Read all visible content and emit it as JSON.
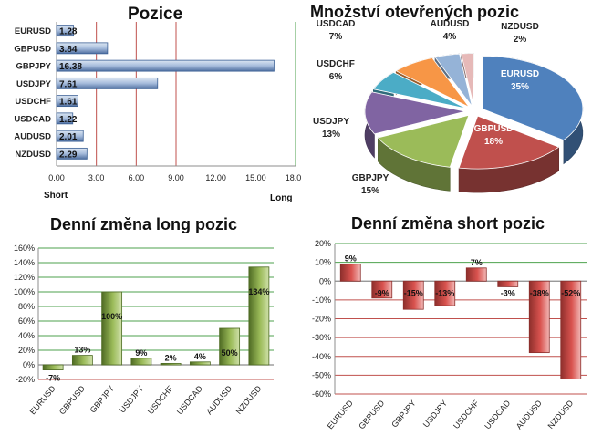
{
  "chart_data": [
    {
      "type": "bar",
      "orientation": "horizontal",
      "title": "Pozice",
      "categories": [
        "EURUSD",
        "GBPUSD",
        "GBPJPY",
        "USDJPY",
        "USDCHF",
        "USDCAD",
        "AUDUSD",
        "NZDUSD"
      ],
      "values": [
        1.28,
        3.84,
        16.38,
        7.61,
        1.61,
        1.22,
        2.01,
        2.29
      ],
      "value_labels": [
        "1.28",
        "3.84",
        "16.38",
        "7.61",
        "1.61",
        "1.22",
        "2.01",
        "2.29"
      ],
      "xlim": [
        0,
        18
      ],
      "xticks": [
        "0.00",
        "3.00",
        "6.00",
        "9.00",
        "12.00",
        "15.00",
        "18.00"
      ],
      "x_left_label": "Short",
      "x_right_label": "Long",
      "reference_lines": [
        3,
        6,
        9,
        18
      ],
      "colors": {
        "bar": "#5a82b8",
        "line_red": "#c0504d",
        "line_green": "#4ea24e"
      }
    },
    {
      "type": "pie",
      "title": "Množství otevřených pozic",
      "slices": [
        {
          "name": "EURUSD",
          "pct": 35,
          "label": "EURUSD\n35%",
          "color": "#4f81bd"
        },
        {
          "name": "GBPUSD",
          "pct": 18,
          "label": "GBPUSD\n18%",
          "color": "#c0504d"
        },
        {
          "name": "GBPJPY",
          "pct": 15,
          "label": "GBPJPY\n15%",
          "color": "#9bbb59"
        },
        {
          "name": "USDJPY",
          "pct": 13,
          "label": "USDJPY\n13%",
          "color": "#8064a2"
        },
        {
          "name": "USDCHF",
          "pct": 6,
          "label": "USDCHF\n6%",
          "color": "#4bacc6"
        },
        {
          "name": "USDCAD",
          "pct": 7,
          "label": "USDCAD\n7%",
          "color": "#f79646"
        },
        {
          "name": "AUDUSD",
          "pct": 4,
          "label": "AUDUSD\n4%",
          "color": "#95b3d7"
        },
        {
          "name": "NZDUSD",
          "pct": 2,
          "label": "NZDUSD\n2%",
          "color": "#e6b9b8"
        }
      ]
    },
    {
      "type": "bar",
      "title": "Denní změna long pozic",
      "categories": [
        "EURUSD",
        "GBPUSD",
        "GBPJPY",
        "USDJPY",
        "USDCHF",
        "USDCAD",
        "AUDUSD",
        "NZDUSD"
      ],
      "values": [
        -7,
        13,
        100,
        9,
        2,
        4,
        50,
        134
      ],
      "value_labels": [
        "-7%",
        "13%",
        "100%",
        "9%",
        "2%",
        "4%",
        "50%",
        "134%"
      ],
      "ylim": [
        -20,
        160
      ],
      "yticks": [
        "-20%",
        "0%",
        "20%",
        "40%",
        "60%",
        "80%",
        "100%",
        "120%",
        "140%",
        "160%"
      ],
      "colors": {
        "bar": "#77933c",
        "grid": "#4ea24e"
      }
    },
    {
      "type": "bar",
      "title": "Denní změna short pozic",
      "categories": [
        "EURUSD",
        "GBPUSD",
        "GBPJPY",
        "USDJPY",
        "USDCHF",
        "USDCAD",
        "AUDUSD",
        "NZDUSD"
      ],
      "values": [
        9,
        -9,
        -15,
        -13,
        7,
        -3,
        -38,
        -52
      ],
      "value_labels": [
        "9%",
        "-9%",
        "-15%",
        "-13%",
        "7%",
        "-3%",
        "-38%",
        "-52%"
      ],
      "ylim": [
        -60,
        20
      ],
      "yticks": [
        "-60%",
        "-50%",
        "-40%",
        "-30%",
        "-20%",
        "-10%",
        "0%",
        "10%",
        "20%"
      ],
      "colors": {
        "bar": "#c0504d",
        "grid_pos": "#4ea24e",
        "grid_neg": "#c0504d"
      }
    }
  ]
}
